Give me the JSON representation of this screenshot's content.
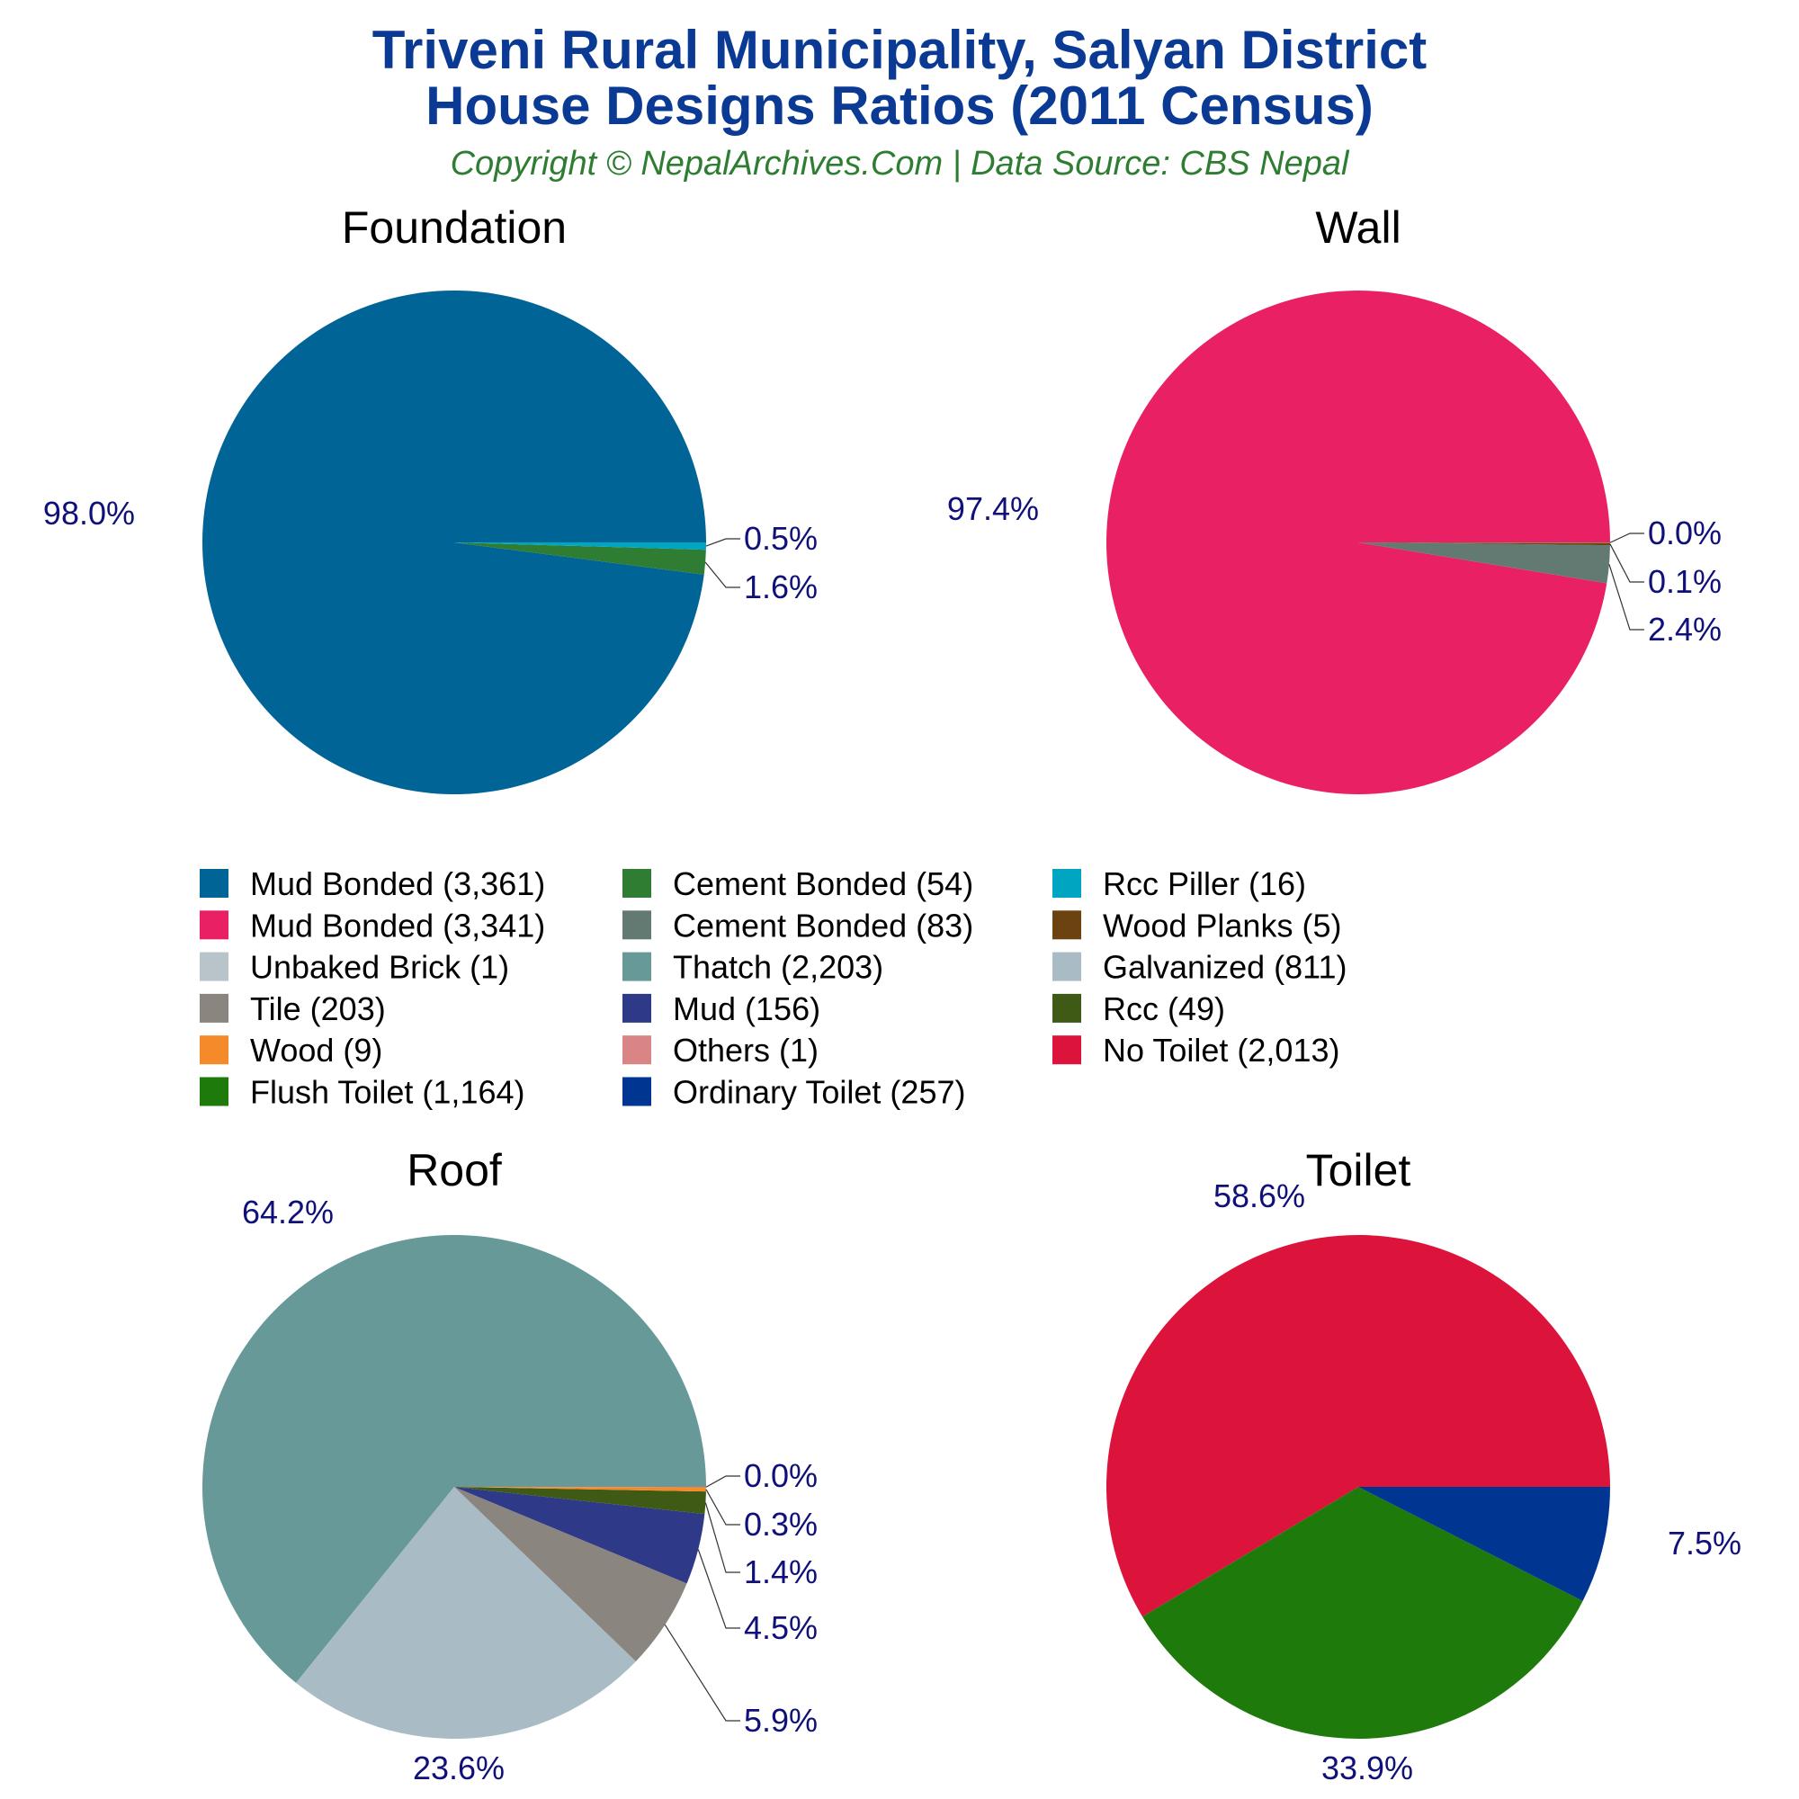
{
  "header": {
    "title_line1": "Triveni Rural Municipality, Salyan District",
    "title_line2": "House Designs Ratios (2011 Census)",
    "subtitle": "Copyright © NepalArchives.Com | Data Source: CBS Nepal"
  },
  "chart_data": [
    {
      "type": "pie",
      "title": "Foundation",
      "slices": [
        {
          "label": "Mud Bonded",
          "value": 3361,
          "percent": "98.0%",
          "color": "#006496"
        },
        {
          "label": "Cement Bonded",
          "value": 54,
          "percent": "1.6%",
          "color": "#2e7d32"
        },
        {
          "label": "Rcc Piller",
          "value": 16,
          "percent": "0.5%",
          "color": "#00a5c2"
        }
      ]
    },
    {
      "type": "pie",
      "title": "Wall",
      "slices": [
        {
          "label": "Mud Bonded",
          "value": 3341,
          "percent": "97.4%",
          "color": "#e92063"
        },
        {
          "label": "Cement Bonded",
          "value": 83,
          "percent": "2.4%",
          "color": "#637a72"
        },
        {
          "label": "Wood Planks",
          "value": 5,
          "percent": "0.1%",
          "color": "#6b4210"
        },
        {
          "label": "Unbaked Brick",
          "value": 1,
          "percent": "0.0%",
          "color": "#b8c4c9"
        }
      ]
    },
    {
      "type": "pie",
      "title": "Roof",
      "slices": [
        {
          "label": "Thatch",
          "value": 2203,
          "percent": "64.2%",
          "color": "#679999"
        },
        {
          "label": "Galvanized",
          "value": 811,
          "percent": "23.6%",
          "color": "#a9bbc4"
        },
        {
          "label": "Tile",
          "value": 203,
          "percent": "5.9%",
          "color": "#8b8580"
        },
        {
          "label": "Mud",
          "value": 156,
          "percent": "4.5%",
          "color": "#2e3a87"
        },
        {
          "label": "Rcc",
          "value": 49,
          "percent": "1.4%",
          "color": "#3e5a14"
        },
        {
          "label": "Wood",
          "value": 9,
          "percent": "0.3%",
          "color": "#f58a2a"
        },
        {
          "label": "Others",
          "value": 1,
          "percent": "0.0%",
          "color": "#d98585"
        }
      ]
    },
    {
      "type": "pie",
      "title": "Toilet",
      "slices": [
        {
          "label": "No Toilet",
          "value": 2013,
          "percent": "58.6%",
          "color": "#dc143c"
        },
        {
          "label": "Flush Toilet",
          "value": 1164,
          "percent": "33.9%",
          "color": "#1e7a0b"
        },
        {
          "label": "Ordinary Toilet",
          "value": 257,
          "percent": "7.5%",
          "color": "#003591"
        }
      ]
    }
  ],
  "legend": [
    {
      "label": "Mud Bonded (3,361)",
      "color": "#006496"
    },
    {
      "label": "Cement Bonded (54)",
      "color": "#2e7d32"
    },
    {
      "label": "Rcc Piller (16)",
      "color": "#00a5c2"
    },
    {
      "label": "Mud Bonded (3,341)",
      "color": "#e92063"
    },
    {
      "label": "Cement Bonded (83)",
      "color": "#637a72"
    },
    {
      "label": "Wood Planks (5)",
      "color": "#6b4210"
    },
    {
      "label": "Unbaked Brick (1)",
      "color": "#b8c4c9"
    },
    {
      "label": "Thatch (2,203)",
      "color": "#679999"
    },
    {
      "label": "Galvanized (811)",
      "color": "#a9bbc4"
    },
    {
      "label": "Tile (203)",
      "color": "#8b8580"
    },
    {
      "label": "Mud (156)",
      "color": "#2e3a87"
    },
    {
      "label": "Rcc (49)",
      "color": "#3e5a14"
    },
    {
      "label": "Wood (9)",
      "color": "#f58a2a"
    },
    {
      "label": "Others (1)",
      "color": "#d98585"
    },
    {
      "label": "No Toilet (2,013)",
      "color": "#dc143c"
    },
    {
      "label": "Flush Toilet (1,164)",
      "color": "#1e7a0b"
    },
    {
      "label": "Ordinary Toilet (257)",
      "color": "#003591"
    }
  ]
}
